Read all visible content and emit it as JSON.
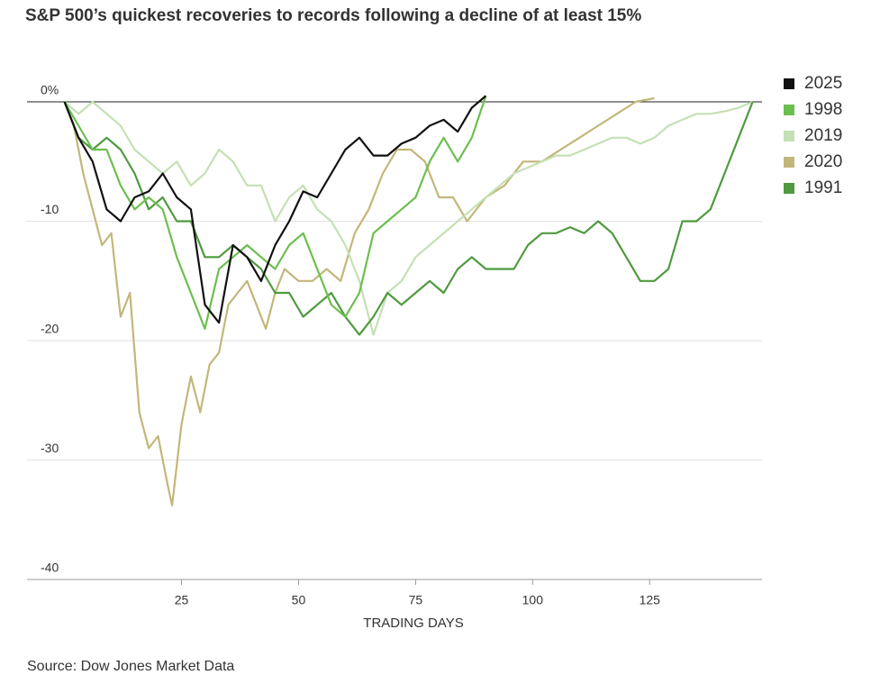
{
  "chart_data": {
    "type": "line",
    "title": "S&P 500’s quickest recoveries to records following a decline of at least 15%",
    "x_label": "TRADING DAYS",
    "source": "Source: Dow Jones Market Data",
    "xlim": [
      -8,
      149
    ],
    "xticks": [
      25,
      50,
      75,
      100,
      125
    ],
    "ylim": [
      -40,
      2
    ],
    "yticks": [
      -40,
      -30,
      -20,
      -10,
      {
        "value": 0,
        "label": "0%"
      }
    ],
    "grid": true,
    "legend": "right",
    "series": [
      {
        "name": "2025",
        "color": "#111111",
        "x": [
          0,
          3,
          6,
          9,
          12,
          15,
          18,
          21,
          24,
          27,
          30,
          33,
          36,
          39,
          42,
          45,
          48,
          51,
          54,
          57,
          60,
          63,
          66,
          69,
          72,
          75,
          78,
          81,
          84,
          87,
          90
        ],
        "values": [
          0,
          -3,
          -5,
          -9,
          -10,
          -8,
          -7.5,
          -6,
          -8,
          -9,
          -17,
          -18.5,
          -12,
          -13,
          -15,
          -12,
          -10,
          -7.5,
          -8,
          -6,
          -4,
          -3,
          -4.5,
          -4.5,
          -3.5,
          -3,
          -2,
          -1.5,
          -2.5,
          -0.5,
          0.5
        ]
      },
      {
        "name": "1998",
        "color": "#6cbf4f",
        "x": [
          0,
          3,
          6,
          9,
          12,
          15,
          18,
          21,
          24,
          27,
          30,
          33,
          36,
          39,
          42,
          45,
          48,
          51,
          54,
          57,
          60,
          63,
          66,
          69,
          72,
          75,
          78,
          81,
          84,
          87,
          90
        ],
        "values": [
          0,
          -2,
          -4,
          -4,
          -7,
          -9,
          -8,
          -9,
          -13,
          -16,
          -19,
          -14,
          -13,
          -12,
          -13,
          -14,
          -12,
          -11,
          -14,
          -17,
          -18,
          -16,
          -11,
          -10,
          -9,
          -8,
          -5,
          -3,
          -5,
          -3,
          0.5
        ]
      },
      {
        "name": "2019",
        "color": "#c5e0b4",
        "x": [
          0,
          3,
          6,
          9,
          12,
          15,
          18,
          21,
          24,
          27,
          30,
          33,
          36,
          39,
          42,
          45,
          48,
          51,
          54,
          57,
          60,
          63,
          66,
          69,
          72,
          75,
          78,
          81,
          84,
          87,
          90,
          93,
          96,
          99,
          102,
          105,
          108,
          111,
          114,
          117,
          120,
          123,
          126,
          129,
          132,
          135,
          138,
          141,
          144,
          147
        ],
        "values": [
          0,
          -1,
          0,
          -1,
          -2,
          -4,
          -5,
          -6,
          -5,
          -7,
          -6,
          -4,
          -5,
          -7,
          -7,
          -10,
          -8,
          -7,
          -9,
          -10,
          -12,
          -15,
          -19.5,
          -16,
          -15,
          -13,
          -12,
          -11,
          -10,
          -9,
          -8,
          -7,
          -6,
          -5.5,
          -5,
          -4.5,
          -4.5,
          -4,
          -3.5,
          -3,
          -3,
          -3.5,
          -3,
          -2,
          -1.5,
          -1,
          -1,
          -0.8,
          -0.5,
          0
        ]
      },
      {
        "name": "2020",
        "color": "#c2b77a",
        "x": [
          0,
          2,
          4,
          6,
          8,
          10,
          12,
          14,
          16,
          18,
          20,
          22,
          23,
          25,
          27,
          29,
          31,
          33,
          35,
          37,
          39,
          41,
          43,
          45,
          47,
          50,
          53,
          56,
          59,
          62,
          65,
          68,
          71,
          74,
          77,
          80,
          83,
          86,
          90,
          94,
          98,
          102,
          106,
          110,
          114,
          118,
          122,
          126
        ],
        "values": [
          0,
          -2,
          -6,
          -9,
          -12,
          -11,
          -18,
          -16,
          -26,
          -29,
          -28,
          -32,
          -33.8,
          -27,
          -23,
          -26,
          -22,
          -21,
          -17,
          -16,
          -15,
          -17,
          -19,
          -16,
          -14,
          -15,
          -15,
          -14,
          -15,
          -11,
          -9,
          -6,
          -4,
          -4,
          -5,
          -8,
          -8,
          -10,
          -8,
          -7,
          -5,
          -5,
          -4,
          -3,
          -2,
          -1,
          0,
          0.3
        ]
      },
      {
        "name": "1991",
        "color": "#4e9a3e",
        "x": [
          0,
          3,
          6,
          9,
          12,
          15,
          18,
          21,
          24,
          27,
          30,
          33,
          36,
          39,
          42,
          45,
          48,
          51,
          54,
          57,
          60,
          63,
          66,
          69,
          72,
          75,
          78,
          81,
          84,
          87,
          90,
          93,
          96,
          99,
          102,
          105,
          108,
          111,
          114,
          117,
          120,
          123,
          126,
          129,
          132,
          135,
          138,
          141,
          144,
          147
        ],
        "values": [
          0,
          -3,
          -4,
          -3,
          -4,
          -6,
          -9,
          -8,
          -10,
          -10,
          -13,
          -13,
          -12,
          -13,
          -14,
          -16,
          -16,
          -18,
          -17,
          -16,
          -18,
          -19.5,
          -18,
          -16,
          -17,
          -16,
          -15,
          -16,
          -14,
          -13,
          -14,
          -14,
          -14,
          -12,
          -11,
          -11,
          -10.5,
          -11,
          -10,
          -11,
          -13,
          -15,
          -15,
          -14,
          -10,
          -10,
          -9,
          -6,
          -3,
          0
        ]
      }
    ]
  }
}
